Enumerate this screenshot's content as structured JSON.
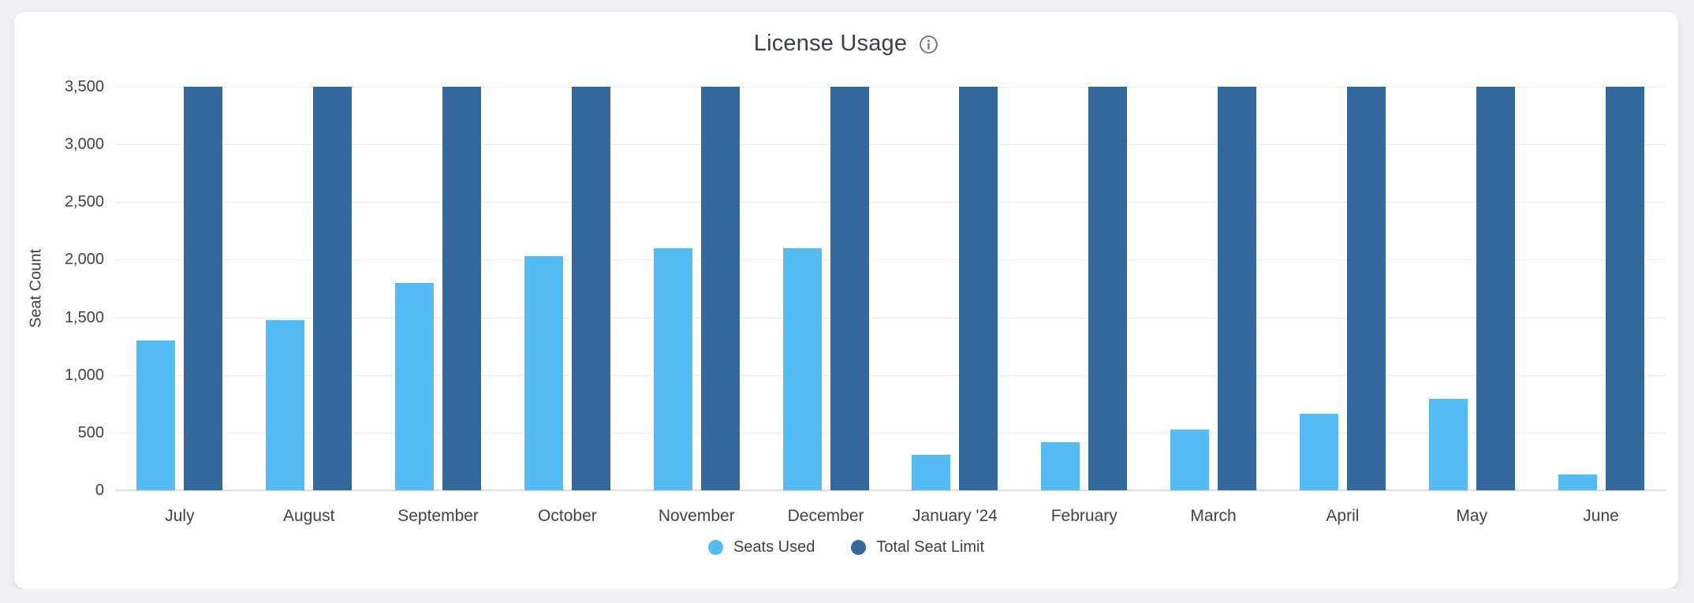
{
  "card": {
    "title": "License Usage"
  },
  "icons": {
    "info": "info-icon"
  },
  "colors": {
    "page_bg": "#f0f1f4",
    "card_bg": "#ffffff",
    "grid": "#ebedf1",
    "axis_line": "#d9dee7",
    "title_text": "#3c4146",
    "tick_text": "#3f444a",
    "info_icon": "#70757a",
    "seats_used": "#55bbf4",
    "total_seat_limit": "#33699d"
  },
  "chart_data": {
    "type": "bar",
    "title": "License Usage",
    "xlabel": "",
    "ylabel": "Seat Count",
    "ylim": [
      0,
      3500
    ],
    "ytick_step": 500,
    "yticks_display": [
      "0",
      "500",
      "1,000",
      "1,500",
      "2,000",
      "2,500",
      "3,000",
      "3,500"
    ],
    "grid": true,
    "legend_position": "bottom",
    "categories": [
      "July",
      "August",
      "September",
      "October",
      "November",
      "December",
      "January '24",
      "February",
      "March",
      "April",
      "May",
      "June"
    ],
    "series": [
      {
        "name": "Seats Used",
        "color": "#55bbf4",
        "values": [
          1300,
          1480,
          1800,
          2030,
          2100,
          2100,
          310,
          415,
          525,
          660,
          790,
          135
        ]
      },
      {
        "name": "Total Seat Limit",
        "color": "#33699d",
        "values": [
          3500,
          3500,
          3500,
          3500,
          3500,
          3500,
          3500,
          3500,
          3500,
          3500,
          3500,
          3500
        ]
      }
    ]
  }
}
